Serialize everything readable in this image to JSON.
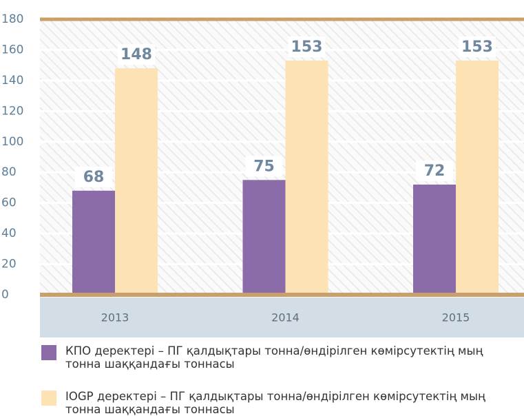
{
  "chart_data": {
    "type": "bar",
    "categories": [
      "2013",
      "2014",
      "2015"
    ],
    "series": [
      {
        "name": "КПО деректері – ПГ қалдықтары тонна/өндірілген көмірсутектің мың тонна шаққандағы тоннасы",
        "color": "#8b6ca8",
        "values": [
          68,
          75,
          72
        ]
      },
      {
        "name": "IOGP деректері – ПГ қалдықтары тонна/өндірілген көмірсутектің мың тонна шаққандағы тоннасы",
        "color": "#fde3b3",
        "values": [
          148,
          153,
          153
        ]
      }
    ],
    "ylim": [
      0,
      180
    ],
    "yticks": [
      0,
      20,
      40,
      60,
      80,
      100,
      120,
      140,
      160,
      180
    ],
    "grid": true
  }
}
